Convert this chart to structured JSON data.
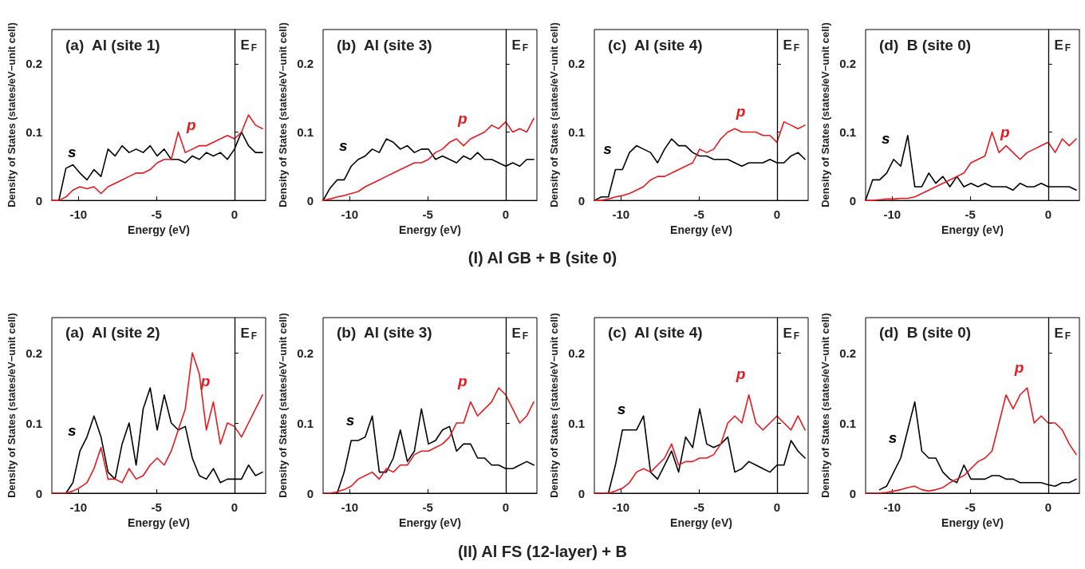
{
  "chart_data": [
    {
      "type": "line",
      "title": "(a)  Al (site 1)",
      "xlabel": "Energy (eV)",
      "ylabel": "Density of States (states/eV−unit cell)",
      "xlim": [
        -11.7,
        2
      ],
      "xticks": [
        -10,
        -5,
        0
      ],
      "ylim": [
        0,
        0.25
      ],
      "yticks": [
        0,
        0.1,
        0.2
      ],
      "x": [
        -11.7,
        -11.25,
        -10.8,
        -10.35,
        -9.9,
        -9.45,
        -9,
        -8.55,
        -8.1,
        -7.65,
        -7.2,
        -6.75,
        -6.3,
        -5.85,
        -5.4,
        -4.95,
        -4.5,
        -4.05,
        -3.6,
        -3.15,
        -2.7,
        -2.25,
        -1.8,
        -1.35,
        -0.9,
        -0.45,
        0,
        0.45,
        0.9,
        1.35,
        1.8
      ],
      "series": [
        {
          "color": "#000000",
          "values": [
            null,
            0,
            0.047,
            0.052,
            0.04,
            0.03,
            0.045,
            0.035,
            0.075,
            0.065,
            0.08,
            0.07,
            0.075,
            0.07,
            0.08,
            0.065,
            0.075,
            0.06,
            0.06,
            0.055,
            0.065,
            0.06,
            0.07,
            0.065,
            0.07,
            0.06,
            0.075,
            0.1,
            0.08,
            0.07,
            0.07
          ]
        },
        {
          "color": "#e8191e",
          "values": [
            0,
            0,
            0.005,
            0.015,
            0.02,
            0.017,
            0.02,
            0.01,
            0.02,
            0.025,
            0.03,
            0.035,
            0.04,
            0.04,
            0.045,
            0.055,
            0.06,
            0.06,
            0.1,
            0.07,
            0.075,
            0.08,
            0.08,
            0.085,
            0.09,
            0.095,
            0.09,
            0.1,
            0.125,
            0.11,
            0.105
          ]
        }
      ],
      "ref_lines": [
        {
          "axis": "x",
          "value": 0,
          "label": "E$_{F}$"
        }
      ],
      "annotations": [
        {
          "text": "s",
          "x": -9.9,
          "y": 0.04
        },
        {
          "text": "p",
          "x": -2.25,
          "y": 0.08
        },
        "(I)  Al GB + B (site 0)"
      ]
    },
    {
      "type": "line",
      "title": "(b)  Al (site 3)",
      "xlabel": "Energy (eV)",
      "ylabel": "Density of States (states/eV−unit cell)",
      "xlim": [
        -11.7,
        2
      ],
      "xticks": [
        -10,
        -5,
        0
      ],
      "ylim": [
        0,
        0.25
      ],
      "yticks": [
        0,
        0.1,
        0.2
      ],
      "x": [
        -11.7,
        -11.25,
        -10.8,
        -10.35,
        -9.9,
        -9.45,
        -9,
        -8.55,
        -8.1,
        -7.65,
        -7.2,
        -6.75,
        -6.3,
        -5.85,
        -5.4,
        -4.95,
        -4.5,
        -4.05,
        -3.6,
        -3.15,
        -2.7,
        -2.25,
        -1.8,
        -1.35,
        -0.9,
        -0.45,
        0,
        0.45,
        0.9,
        1.35,
        1.8
      ],
      "series": [
        {
          "color": "#000000",
          "values": [
            0,
            0.018,
            0.03,
            0.03,
            0.05,
            0.06,
            0.065,
            0.075,
            0.07,
            0.09,
            0.085,
            0.075,
            0.08,
            0.07,
            0.075,
            0.075,
            0.06,
            0.065,
            0.06,
            0.055,
            0.065,
            0.06,
            0.07,
            0.06,
            0.06,
            0.055,
            0.05,
            0.055,
            0.05,
            0.06,
            0.06
          ]
        },
        {
          "color": "#e8191e",
          "values": [
            0,
            0.002,
            0.005,
            0.007,
            0.01,
            0.013,
            0.02,
            0.025,
            0.03,
            0.035,
            0.04,
            0.045,
            0.05,
            0.055,
            0.055,
            0.06,
            0.07,
            0.075,
            0.085,
            0.09,
            0.08,
            0.09,
            0.095,
            0.1,
            0.11,
            0.105,
            0.115,
            0.1,
            0.105,
            0.1,
            0.12
          ]
        }
      ],
      "ref_lines": [
        {
          "axis": "x",
          "value": 0,
          "label": "E$_{F}$"
        }
      ],
      "annotations": [
        {
          "text": "s",
          "x": -9.9,
          "y": 0.05
        },
        {
          "text": "p",
          "x": -2.25,
          "y": 0.09
        }
      ]
    },
    {
      "type": "line",
      "title": "(c)  Al (site 4)",
      "xlabel": "Energy (eV)",
      "ylabel": "Density of States (states/eV−unit cell)",
      "xlim": [
        -11.7,
        2
      ],
      "xticks": [
        -10,
        -5,
        0
      ],
      "ylim": [
        0,
        0.25
      ],
      "yticks": [
        0,
        0.1,
        0.2
      ],
      "x": [
        -11.7,
        -11.25,
        -10.8,
        -10.35,
        -9.9,
        -9.45,
        -9,
        -8.55,
        -8.1,
        -7.65,
        -7.2,
        -6.75,
        -6.3,
        -5.85,
        -5.4,
        -4.95,
        -4.5,
        -4.05,
        -3.6,
        -3.15,
        -2.7,
        -2.25,
        -1.8,
        -1.35,
        -0.9,
        -0.45,
        0,
        0.45,
        0.9,
        1.35,
        1.8
      ],
      "series": [
        {
          "color": "#000000",
          "values": [
            0,
            0.005,
            0.005,
            0.045,
            0.045,
            0.07,
            0.08,
            0.075,
            0.07,
            0.055,
            0.075,
            0.09,
            0.08,
            0.08,
            0.07,
            0.065,
            0.065,
            0.06,
            0.06,
            0.06,
            0.055,
            0.05,
            0.055,
            0.055,
            0.055,
            0.06,
            0.055,
            0.055,
            0.065,
            0.07,
            0.06
          ]
        },
        {
          "color": "#e8191e",
          "values": [
            0,
            0,
            0.002,
            0.005,
            0.007,
            0.01,
            0.015,
            0.02,
            0.03,
            0.035,
            0.035,
            0.04,
            0.045,
            0.05,
            0.055,
            0.075,
            0.07,
            0.075,
            0.09,
            0.1,
            0.105,
            0.1,
            0.1,
            0.1,
            0.095,
            0.095,
            0.085,
            0.115,
            0.11,
            0.105,
            0.11
          ]
        }
      ],
      "ref_lines": [
        {
          "axis": "x",
          "value": 0,
          "label": "E$_{F}$"
        }
      ],
      "annotations": [
        {
          "text": "s",
          "x": -10.35,
          "y": 0.045
        },
        {
          "text": "p",
          "x": -1.8,
          "y": 0.1
        }
      ]
    },
    {
      "type": "line",
      "title": "(d)  B (site 0)",
      "xlabel": "Energy (eV)",
      "ylabel": "Density of States (states/eV−unit cell)",
      "xlim": [
        -11.7,
        2
      ],
      "xticks": [
        -10,
        -5,
        0
      ],
      "ylim": [
        0,
        0.25
      ],
      "yticks": [
        0,
        0.1,
        0.2
      ],
      "x": [
        -11.7,
        -11.25,
        -10.8,
        -10.35,
        -9.9,
        -9.45,
        -9,
        -8.55,
        -8.1,
        -7.65,
        -7.2,
        -6.75,
        -6.3,
        -5.85,
        -5.4,
        -4.95,
        -4.5,
        -4.05,
        -3.6,
        -3.15,
        -2.7,
        -2.25,
        -1.8,
        -1.35,
        -0.9,
        -0.45,
        0,
        0.45,
        0.9,
        1.35,
        1.8
      ],
      "series": [
        {
          "color": "#000000",
          "values": [
            0,
            0.03,
            0.03,
            0.04,
            0.06,
            0.05,
            0.095,
            0.02,
            0.02,
            0.04,
            0.025,
            0.035,
            0.02,
            0.035,
            0.02,
            0.025,
            0.02,
            0.025,
            0.02,
            0.02,
            0.02,
            0.015,
            0.025,
            0.02,
            0.02,
            0.025,
            0.02,
            0.02,
            0.02,
            0.02,
            0.015
          ]
        },
        {
          "color": "#e8191e",
          "values": [
            0,
            0,
            0.001,
            0.002,
            0.002,
            0.003,
            0.003,
            0.005,
            0.01,
            0.015,
            0.02,
            0.025,
            0.03,
            0.035,
            0.04,
            0.055,
            0.06,
            0.065,
            0.1,
            0.07,
            0.08,
            0.07,
            0.06,
            0.07,
            0.075,
            0.08,
            0.085,
            0.07,
            0.09,
            0.08,
            0.09
          ]
        }
      ],
      "ref_lines": [
        {
          "axis": "x",
          "value": 0,
          "label": "E$_{F}$"
        }
      ],
      "annotations": [
        {
          "text": "s",
          "x": -9.9,
          "y": 0.06
        },
        {
          "text": "p",
          "x": -2.25,
          "y": 0.07
        }
      ]
    },
    {
      "type": "line",
      "title": "(a)  Al (site 2)",
      "xlabel": "Energy (eV)",
      "ylabel": "Density of States (states/eV−unit cell)",
      "xlim": [
        -11.7,
        2
      ],
      "xticks": [
        -10,
        -5,
        0
      ],
      "ylim": [
        0,
        0.25
      ],
      "yticks": [
        0,
        0.1,
        0.2
      ],
      "x": [
        -11.7,
        -11.25,
        -10.8,
        -10.35,
        -9.9,
        -9.45,
        -9,
        -8.55,
        -8.1,
        -7.65,
        -7.2,
        -6.75,
        -6.3,
        -5.85,
        -5.4,
        -4.95,
        -4.5,
        -4.05,
        -3.6,
        -3.15,
        -2.7,
        -2.25,
        -1.8,
        -1.35,
        -0.9,
        -0.45,
        0,
        0.45,
        0.9,
        1.35,
        1.8
      ],
      "series": [
        {
          "color": "#000000",
          "values": [
            null,
            null,
            0,
            0.015,
            0.06,
            0.08,
            0.11,
            0.08,
            0.03,
            0.02,
            0.07,
            0.1,
            0.04,
            0.12,
            0.15,
            0.09,
            0.14,
            0.1,
            0.09,
            0.095,
            0.05,
            0.025,
            0.02,
            0.035,
            0.015,
            0.02,
            0.02,
            0.02,
            0.04,
            0.025,
            0.03
          ]
        },
        {
          "color": "#e8191e",
          "values": [
            0,
            0,
            0,
            0.003,
            0.008,
            0.015,
            0.035,
            0.065,
            0.02,
            0.02,
            0.015,
            0.035,
            0.02,
            0.025,
            0.04,
            0.05,
            0.04,
            0.06,
            0.09,
            0.12,
            0.2,
            0.17,
            0.09,
            0.13,
            0.07,
            0.1,
            0.095,
            0.08,
            0.1,
            0.12,
            0.14
          ]
        }
      ],
      "ref_lines": [
        {
          "axis": "x",
          "value": 0,
          "label": "E$_{F}$"
        }
      ],
      "annotations": [
        {
          "text": "s",
          "x": -9.9,
          "y": 0.06
        },
        {
          "text": "p",
          "x": -1.35,
          "y": 0.13
        },
        "(II)  Al FS (12-layer) + B"
      ]
    },
    {
      "type": "line",
      "title": "(b)  Al (site 3)",
      "xlabel": "Energy (eV)",
      "ylabel": "Density of States (states/eV−unit cell)",
      "xlim": [
        -11.7,
        2
      ],
      "xticks": [
        -10,
        -5,
        0
      ],
      "ylim": [
        0,
        0.25
      ],
      "yticks": [
        0,
        0.1,
        0.2
      ],
      "x": [
        -11.7,
        -11.25,
        -10.8,
        -10.35,
        -9.9,
        -9.45,
        -9,
        -8.55,
        -8.1,
        -7.65,
        -7.2,
        -6.75,
        -6.3,
        -5.85,
        -5.4,
        -4.95,
        -4.5,
        -4.05,
        -3.6,
        -3.15,
        -2.7,
        -2.25,
        -1.8,
        -1.35,
        -0.9,
        -0.45,
        0,
        0.45,
        0.9,
        1.35,
        1.8
      ],
      "series": [
        {
          "color": "#000000",
          "values": [
            null,
            null,
            0,
            0.03,
            0.075,
            0.075,
            0.08,
            0.11,
            0.03,
            0.03,
            0.05,
            0.09,
            0.045,
            0.06,
            0.12,
            0.07,
            0.075,
            0.09,
            0.095,
            0.06,
            0.07,
            0.07,
            0.05,
            0.05,
            0.04,
            0.04,
            0.035,
            0.035,
            0.04,
            0.045,
            0.04
          ]
        },
        {
          "color": "#e8191e",
          "values": [
            0,
            0,
            0.002,
            0.005,
            0.01,
            0.02,
            0.025,
            0.03,
            0.02,
            0.035,
            0.03,
            0.04,
            0.04,
            0.055,
            0.06,
            0.06,
            0.065,
            0.07,
            0.08,
            0.1,
            0.1,
            0.13,
            0.11,
            0.12,
            0.13,
            0.15,
            0.14,
            0.12,
            0.1,
            0.11,
            0.13
          ]
        }
      ],
      "ref_lines": [
        {
          "axis": "x",
          "value": 0,
          "label": "E$_{F}$"
        }
      ],
      "annotations": [
        {
          "text": "s",
          "x": -9.45,
          "y": 0.075
        },
        {
          "text": "p",
          "x": -2.25,
          "y": 0.13
        }
      ]
    },
    {
      "type": "line",
      "title": "(c)  Al (site 4)",
      "xlabel": "Energy (eV)",
      "ylabel": "Density of States (states/eV−unit cell)",
      "xlim": [
        -11.7,
        2
      ],
      "xticks": [
        -10,
        -5,
        0
      ],
      "ylim": [
        0,
        0.25
      ],
      "yticks": [
        0,
        0.1,
        0.2
      ],
      "x": [
        -11.7,
        -11.25,
        -10.8,
        -10.35,
        -9.9,
        -9.45,
        -9,
        -8.55,
        -8.1,
        -7.65,
        -7.2,
        -6.75,
        -6.3,
        -5.85,
        -5.4,
        -4.95,
        -4.5,
        -4.05,
        -3.6,
        -3.15,
        -2.7,
        -2.25,
        -1.8,
        -1.35,
        -0.9,
        -0.45,
        0,
        0.45,
        0.9,
        1.35,
        1.8
      ],
      "series": [
        {
          "color": "#000000",
          "values": [
            null,
            null,
            0,
            0.04,
            0.09,
            0.09,
            0.09,
            0.11,
            0.03,
            0.02,
            0.04,
            0.06,
            0.03,
            0.08,
            0.065,
            0.12,
            0.07,
            0.065,
            0.07,
            0.08,
            0.03,
            0.035,
            0.045,
            0.04,
            0.035,
            0.03,
            0.04,
            0.04,
            0.075,
            0.06,
            0.05
          ]
        },
        {
          "color": "#e8191e",
          "values": [
            0,
            0,
            0,
            0.003,
            0.007,
            0.015,
            0.03,
            0.035,
            0.03,
            0.04,
            0.05,
            0.07,
            0.04,
            0.045,
            0.045,
            0.05,
            0.05,
            0.055,
            0.07,
            0.1,
            0.11,
            0.1,
            0.14,
            0.1,
            0.09,
            0.1,
            0.11,
            0.1,
            0.09,
            0.11,
            0.09
          ]
        }
      ],
      "ref_lines": [
        {
          "axis": "x",
          "value": 0,
          "label": "E$_{F}$"
        }
      ],
      "annotations": [
        {
          "text": "s",
          "x": -9.45,
          "y": 0.09
        },
        {
          "text": "p",
          "x": -1.8,
          "y": 0.14
        }
      ]
    },
    {
      "type": "line",
      "title": "(d)  B (site 0)",
      "xlabel": "Energy (eV)",
      "ylabel": "Density of States (states/eV−unit cell)",
      "xlim": [
        -11.7,
        2
      ],
      "xticks": [
        -10,
        -5,
        0
      ],
      "ylim": [
        0,
        0.25
      ],
      "yticks": [
        0,
        0.1,
        0.2
      ],
      "x": [
        -11.7,
        -11.25,
        -10.8,
        -10.35,
        -9.9,
        -9.45,
        -9,
        -8.55,
        -8.1,
        -7.65,
        -7.2,
        -6.75,
        -6.3,
        -5.85,
        -5.4,
        -4.95,
        -4.5,
        -4.05,
        -3.6,
        -3.15,
        -2.7,
        -2.25,
        -1.8,
        -1.35,
        -0.9,
        -0.45,
        0,
        0.45,
        0.9,
        1.35,
        1.8
      ],
      "series": [
        {
          "color": "#000000",
          "values": [
            null,
            null,
            0.005,
            0.01,
            0.03,
            0.05,
            0.09,
            0.13,
            0.06,
            0.05,
            0.05,
            0.03,
            0.02,
            0.015,
            0.04,
            0.02,
            0.02,
            0.02,
            0.025,
            0.025,
            0.02,
            0.02,
            0.015,
            0.015,
            0.015,
            0.015,
            0.012,
            0.01,
            0.015,
            0.015,
            0.02
          ]
        },
        {
          "color": "#e8191e",
          "values": [
            0,
            0,
            0,
            0.001,
            0.003,
            0.005,
            0.008,
            0.01,
            0.005,
            0.003,
            0.005,
            0.008,
            0.015,
            0.02,
            0.025,
            0.035,
            0.045,
            0.05,
            0.06,
            0.1,
            0.14,
            0.12,
            0.14,
            0.15,
            0.1,
            0.11,
            0.1,
            0.1,
            0.09,
            0.07,
            0.055
          ]
        }
      ],
      "ref_lines": [
        {
          "axis": "x",
          "value": 0,
          "label": "E$_{F}$"
        }
      ],
      "annotations": [
        {
          "text": "s",
          "x": -9.45,
          "y": 0.05
        },
        {
          "text": "p",
          "x": -1.35,
          "y": 0.15
        }
      ]
    }
  ]
}
